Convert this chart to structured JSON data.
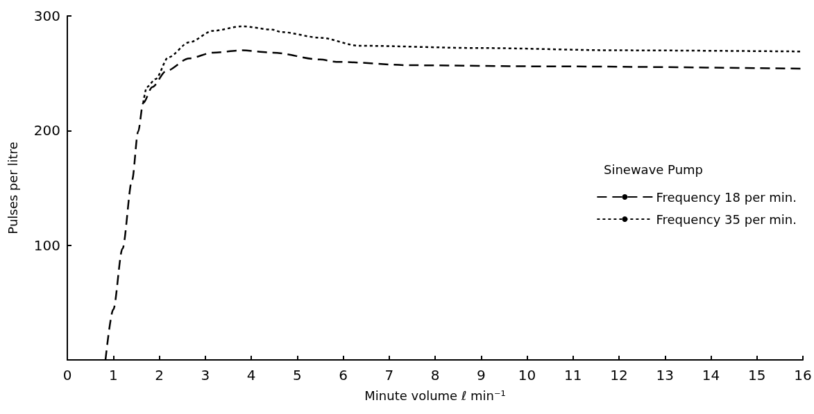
{
  "chart_data": {
    "type": "line",
    "xlabel": "Minute volume ℓ min⁻¹",
    "ylabel": "Pulses per litre",
    "legend_title": "Sinewave Pump",
    "xlim": [
      0,
      16
    ],
    "xticks": [
      0,
      1,
      2,
      3,
      4,
      5,
      6,
      7,
      8,
      9,
      10,
      11,
      12,
      13,
      14,
      15,
      16
    ],
    "ylim": [
      0,
      300
    ],
    "yticks": [
      100,
      200,
      300
    ],
    "grid": false,
    "legend": "right",
    "marker": "none",
    "series": [
      {
        "name": "Frequency 18 per min.",
        "color": "#000000",
        "line_style": "dashed",
        "x": [
          0.83,
          1.0,
          1.2,
          1.41,
          1.54,
          1.65,
          1.85,
          2.15,
          2.65,
          3.17,
          3.8,
          4.47,
          5.5,
          5.85,
          7.5,
          10.5,
          16
        ],
        "values": [
          0,
          44,
          97,
          157,
          199,
          224,
          238,
          252,
          263,
          268,
          270,
          268,
          262,
          260,
          257,
          256,
          254
        ]
      },
      {
        "name": "Frequency 35 per min.",
        "color": "#000000",
        "line_style": "dotted",
        "x": [
          1.65,
          1.73,
          1.92,
          2.2,
          2.65,
          3.17,
          3.8,
          4.47,
          4.65,
          5.5,
          6.35,
          9.0,
          12.0,
          16
        ],
        "values": [
          224,
          238,
          245,
          264,
          277,
          287,
          291,
          288,
          286,
          281,
          274,
          272,
          270,
          269
        ]
      }
    ]
  }
}
